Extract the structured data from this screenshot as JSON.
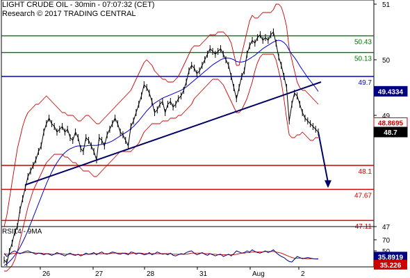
{
  "header": {
    "title": "LIGHT CRUDE OIL - 30min - 07:07:32 (CET)",
    "subtitle": "Research © 2017 TRADING CENTRAL"
  },
  "colors": {
    "price": "#000000",
    "bollinger": "#cc0000",
    "ma_blue": "#0000cc",
    "support_line": "#0000cc",
    "trend_line": "#000066",
    "level_green": "#007700",
    "level_blue": "#0000cc",
    "level_red": "#cc0000",
    "arrow": "#000066",
    "rsi": "#000080",
    "rsi_signal": "#cc0000",
    "badge_blue": "#000080",
    "badge_red": "#cc0000",
    "badge_black": "#000000"
  },
  "chart_data": [
    {
      "type": "line",
      "title": "LIGHT CRUDE OIL - 30min - 07:07:32 (CET)",
      "x_tick_labels": [
        "26",
        "27",
        "28",
        "31",
        "Aug",
        "2"
      ],
      "y_tick_labels": [
        "51",
        "50",
        "49",
        "47"
      ],
      "ylim": [
        46.0,
        51.1
      ],
      "grid": false,
      "horizontal_levels": [
        {
          "value": 50.43,
          "label": "50.43",
          "color": "green"
        },
        {
          "value": 50.13,
          "label": "50.13",
          "color": "green"
        },
        {
          "value": 49.7,
          "label": "49.7",
          "color": "blue"
        },
        {
          "value": 48.1,
          "label": "48.1",
          "color": "red"
        },
        {
          "value": 47.67,
          "label": "47.67",
          "color": "red"
        },
        {
          "value": 47.11,
          "label": "47.11",
          "color": "red"
        }
      ],
      "price_badges": [
        {
          "value": 49.4334,
          "label": "49.4334",
          "style": "blue"
        },
        {
          "value": 48.8695,
          "label": "48.8695",
          "style": "red"
        },
        {
          "value": 48.7,
          "label": "48.7",
          "style": "black"
        }
      ],
      "series": [
        {
          "role": "price",
          "values": [
            46.4,
            46.35,
            46.55,
            46.7,
            46.9,
            47.0,
            47.3,
            47.5,
            47.7,
            47.9,
            48.0,
            48.1,
            48.2,
            48.35,
            48.45,
            48.7,
            48.85,
            48.95,
            48.85,
            48.8,
            48.7,
            48.75,
            48.8,
            48.7,
            48.75,
            48.6,
            48.55,
            48.7,
            48.6,
            48.4,
            48.35,
            48.6,
            48.55,
            48.45,
            48.35,
            48.2,
            48.6,
            48.55,
            48.45,
            48.65,
            48.75,
            48.85,
            48.95,
            48.85,
            48.7,
            48.65,
            48.55,
            48.45,
            48.8,
            48.9,
            49.05,
            49.2,
            49.35,
            49.55,
            49.5,
            49.4,
            49.25,
            49.05,
            49.1,
            49.2,
            49.25,
            49.05,
            49.2,
            49.25,
            49.15,
            49.2,
            49.3,
            49.35,
            49.45,
            49.6,
            49.8,
            49.9,
            49.85,
            49.75,
            49.8,
            49.9,
            50.0,
            50.1,
            50.2,
            50.15,
            50.1,
            50.15,
            50.2,
            50.1,
            50.0,
            49.9,
            49.7,
            49.5,
            49.3,
            49.5,
            49.7,
            49.8,
            50.1,
            50.25,
            50.35,
            50.3,
            50.4,
            50.45,
            50.35,
            50.4,
            50.35,
            50.45,
            50.5,
            50.3,
            50.05,
            49.9,
            49.7,
            49.5,
            48.9,
            49.2,
            49.4,
            49.35,
            49.2,
            49.05,
            48.95,
            48.9,
            48.85,
            48.8,
            48.75,
            48.7
          ]
        },
        {
          "role": "bollinger_upper",
          "values": [
            47.0,
            47.2,
            47.5,
            47.8,
            48.1,
            48.4,
            48.6,
            48.8,
            48.95,
            49.05,
            49.1,
            49.15,
            49.2,
            49.2,
            49.25,
            49.3,
            49.35,
            49.3,
            49.25,
            49.2,
            49.15,
            49.1,
            49.05,
            49.05,
            49.0,
            49.0,
            49.0,
            48.95,
            48.9,
            48.9,
            48.95,
            49.0,
            49.0,
            48.95,
            48.9,
            48.85,
            48.85,
            48.9,
            48.95,
            49.0,
            49.05,
            49.1,
            49.15,
            49.2,
            49.25,
            49.3,
            49.35,
            49.4,
            49.45,
            49.55,
            49.65,
            49.75,
            49.85,
            49.95,
            50.0,
            49.95,
            49.9,
            49.8,
            49.75,
            49.7,
            49.65,
            49.65,
            49.6,
            49.6,
            49.6,
            49.65,
            49.7,
            49.8,
            49.9,
            50.0,
            50.1,
            50.2,
            50.25,
            50.25,
            50.25,
            50.3,
            50.35,
            50.4,
            50.45,
            50.45,
            50.45,
            50.5,
            50.5,
            50.5,
            50.45,
            50.4,
            50.3,
            50.1,
            49.9,
            49.9,
            50.1,
            50.3,
            50.5,
            50.7,
            50.8,
            50.75,
            50.75,
            50.8,
            50.85,
            50.85,
            50.85,
            50.85,
            50.9,
            51.0,
            51.0,
            50.95,
            50.8,
            50.6,
            50.2,
            50.0,
            49.8,
            49.6,
            49.5,
            49.45,
            49.45,
            49.4,
            49.35,
            49.3,
            49.25,
            49.2
          ]
        },
        {
          "role": "bollinger_lower",
          "values": [
            46.2,
            46.2,
            46.25,
            46.3,
            46.4,
            46.55,
            46.75,
            46.95,
            47.15,
            47.35,
            47.5,
            47.65,
            47.75,
            47.85,
            47.95,
            48.05,
            48.15,
            48.2,
            48.25,
            48.3,
            48.3,
            48.3,
            48.3,
            48.25,
            48.25,
            48.2,
            48.15,
            48.15,
            48.1,
            48.05,
            48.0,
            48.0,
            48.0,
            47.95,
            47.9,
            47.9,
            47.95,
            48.0,
            48.05,
            48.1,
            48.15,
            48.2,
            48.25,
            48.3,
            48.35,
            48.35,
            48.35,
            48.35,
            48.35,
            48.4,
            48.45,
            48.5,
            48.6,
            48.7,
            48.75,
            48.8,
            48.85,
            48.85,
            48.85,
            48.85,
            48.9,
            48.9,
            48.9,
            48.95,
            48.95,
            48.95,
            49.0,
            49.0,
            49.05,
            49.1,
            49.15,
            49.2,
            49.3,
            49.35,
            49.4,
            49.45,
            49.5,
            49.55,
            49.6,
            49.65,
            49.65,
            49.65,
            49.6,
            49.55,
            49.45,
            49.35,
            49.25,
            49.15,
            49.05,
            49.05,
            49.1,
            49.2,
            49.3,
            49.45,
            49.6,
            49.8,
            49.95,
            50.05,
            50.1,
            50.1,
            50.1,
            50.1,
            50.1,
            50.0,
            49.8,
            49.6,
            49.3,
            48.95,
            48.65,
            48.6,
            48.6,
            48.65,
            48.65,
            48.7,
            48.65,
            48.6,
            48.55,
            48.55,
            48.6,
            48.6
          ]
        },
        {
          "role": "moving_average",
          "values": [
            46.3,
            46.33,
            46.37,
            46.42,
            46.48,
            46.55,
            46.63,
            46.72,
            46.82,
            46.93,
            47.05,
            47.17,
            47.29,
            47.41,
            47.53,
            47.65,
            47.77,
            47.88,
            47.98,
            48.07,
            48.15,
            48.22,
            48.28,
            48.33,
            48.37,
            48.4,
            48.42,
            48.44,
            48.45,
            48.45,
            48.45,
            48.45,
            48.46,
            48.46,
            48.46,
            48.46,
            48.47,
            48.48,
            48.49,
            48.5,
            48.52,
            48.54,
            48.57,
            48.6,
            48.63,
            48.66,
            48.69,
            48.72,
            48.76,
            48.8,
            48.85,
            48.9,
            48.96,
            49.02,
            49.08,
            49.13,
            49.18,
            49.22,
            49.25,
            49.28,
            49.31,
            49.33,
            49.35,
            49.37,
            49.39,
            49.41,
            49.43,
            49.45,
            49.48,
            49.51,
            49.55,
            49.59,
            49.63,
            49.67,
            49.71,
            49.75,
            49.79,
            49.83,
            49.87,
            49.91,
            49.94,
            49.97,
            50.0,
            50.02,
            50.03,
            50.03,
            50.02,
            50.0,
            49.97,
            49.96,
            49.96,
            49.97,
            49.99,
            50.02,
            50.05,
            50.08,
            50.12,
            50.16,
            50.2,
            50.23,
            50.26,
            50.29,
            50.32,
            50.34,
            50.35,
            50.34,
            50.31,
            50.26,
            50.17,
            50.1,
            50.04,
            49.97,
            49.89,
            49.82,
            49.75,
            49.68,
            49.62,
            49.56,
            49.5,
            49.43
          ]
        }
      ]
    },
    {
      "type": "line",
      "title": "RSI14 - 9MA",
      "y_tick_labels": [
        "70",
        "50"
      ],
      "ylim": [
        20,
        80
      ],
      "value_badges": [
        {
          "value": 35.8919,
          "label": "35.8919",
          "style": "blue"
        },
        {
          "value": 35.226,
          "label": "35.226",
          "style": "red"
        }
      ],
      "series": [
        {
          "role": "rsi",
          "values": [
            45,
            40,
            44,
            48,
            50,
            47,
            45,
            47,
            49,
            50,
            48,
            46,
            44,
            46,
            45,
            43,
            45,
            44,
            42,
            44,
            47,
            45,
            43,
            41,
            44,
            46,
            43,
            42,
            44,
            41,
            43,
            46,
            44,
            45,
            47,
            43,
            46,
            48,
            45,
            44,
            46,
            48,
            47,
            45,
            44,
            46,
            45,
            43,
            48,
            47,
            44,
            46,
            45,
            43,
            44,
            47,
            43,
            45,
            48,
            46,
            44,
            45,
            43,
            46,
            42,
            41,
            43,
            45,
            44,
            47,
            49,
            50,
            46,
            43,
            45,
            47,
            44,
            42,
            45,
            43,
            41,
            43,
            44,
            40,
            42,
            44,
            41,
            45,
            50,
            48,
            46,
            47,
            50,
            48,
            52,
            49,
            47,
            46,
            48,
            50,
            47,
            49,
            52,
            47,
            43,
            40,
            38,
            34,
            31,
            30,
            35,
            40,
            38,
            36,
            37,
            38,
            37,
            36,
            35.5,
            35.9
          ]
        },
        {
          "role": "rsi_signal",
          "values": [
            45,
            44,
            44,
            45,
            46,
            46,
            46,
            46,
            47,
            47,
            47,
            47,
            46,
            46,
            46,
            45,
            45,
            45,
            44,
            44,
            45,
            45,
            45,
            44,
            44,
            44,
            44,
            43,
            43,
            43,
            43,
            44,
            44,
            44,
            45,
            45,
            45,
            45,
            45,
            45,
            45,
            46,
            46,
            46,
            46,
            46,
            46,
            45,
            45,
            46,
            46,
            46,
            46,
            45,
            45,
            45,
            45,
            45,
            45,
            45,
            45,
            45,
            45,
            45,
            44,
            44,
            44,
            44,
            44,
            44,
            45,
            46,
            46,
            46,
            46,
            46,
            45,
            45,
            45,
            44,
            44,
            43,
            43,
            43,
            43,
            43,
            43,
            43,
            44,
            45,
            46,
            46,
            47,
            47,
            48,
            48,
            48,
            48,
            48,
            49,
            49,
            49,
            49,
            48,
            47,
            46,
            44,
            42,
            40,
            38,
            37,
            37,
            37,
            37,
            36,
            36,
            36,
            36,
            35.4,
            35.2
          ]
        }
      ]
    }
  ]
}
